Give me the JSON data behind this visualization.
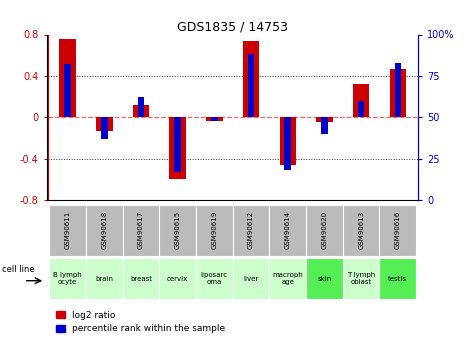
{
  "title": "GDS1835 / 14753",
  "samples": [
    "GSM90611",
    "GSM90618",
    "GSM90617",
    "GSM90615",
    "GSM90619",
    "GSM90612",
    "GSM90614",
    "GSM90620",
    "GSM90613",
    "GSM90616"
  ],
  "cell_lines": [
    "B lymph\nocyte",
    "brain",
    "breast",
    "cervix",
    "liposarc\noma",
    "liver",
    "macroph\nage",
    "skin",
    "T lymph\noblast",
    "testis"
  ],
  "cell_line_colors": [
    "#ccffcc",
    "#ccffcc",
    "#ccffcc",
    "#ccffcc",
    "#ccffcc",
    "#ccffcc",
    "#ccffcc",
    "#55ee55",
    "#ccffcc",
    "#55ee55"
  ],
  "log2_ratio": [
    0.76,
    -0.13,
    0.12,
    -0.6,
    -0.04,
    0.74,
    -0.46,
    -0.05,
    0.32,
    0.47
  ],
  "percentile_rank": [
    82,
    37,
    62,
    17,
    48,
    88,
    18,
    40,
    60,
    83
  ],
  "ylim_left": [
    -0.8,
    0.8
  ],
  "ylim_right": [
    0,
    100
  ],
  "yticks_left": [
    -0.8,
    -0.4,
    0.0,
    0.4,
    0.8
  ],
  "yticks_right": [
    0,
    25,
    50,
    75,
    100
  ],
  "ytick_labels_left": [
    "-0.8",
    "-0.4",
    "0",
    "0.4",
    "0.8"
  ],
  "ytick_labels_right": [
    "0",
    "25",
    "50",
    "75",
    "100%"
  ],
  "red_color": "#cc0000",
  "blue_color": "#0000cc",
  "zero_line_color": "#ff6666",
  "grid_color": "#333333",
  "red_bar_width": 0.45,
  "blue_bar_width": 0.18,
  "legend_red": "log2 ratio",
  "legend_blue": "percentile rank within the sample",
  "cell_line_label": "cell line",
  "gsm_bg_color": "#bbbbbb",
  "cell_line_bg_light": "#ccffcc",
  "cell_line_bg_dark": "#55ee55"
}
